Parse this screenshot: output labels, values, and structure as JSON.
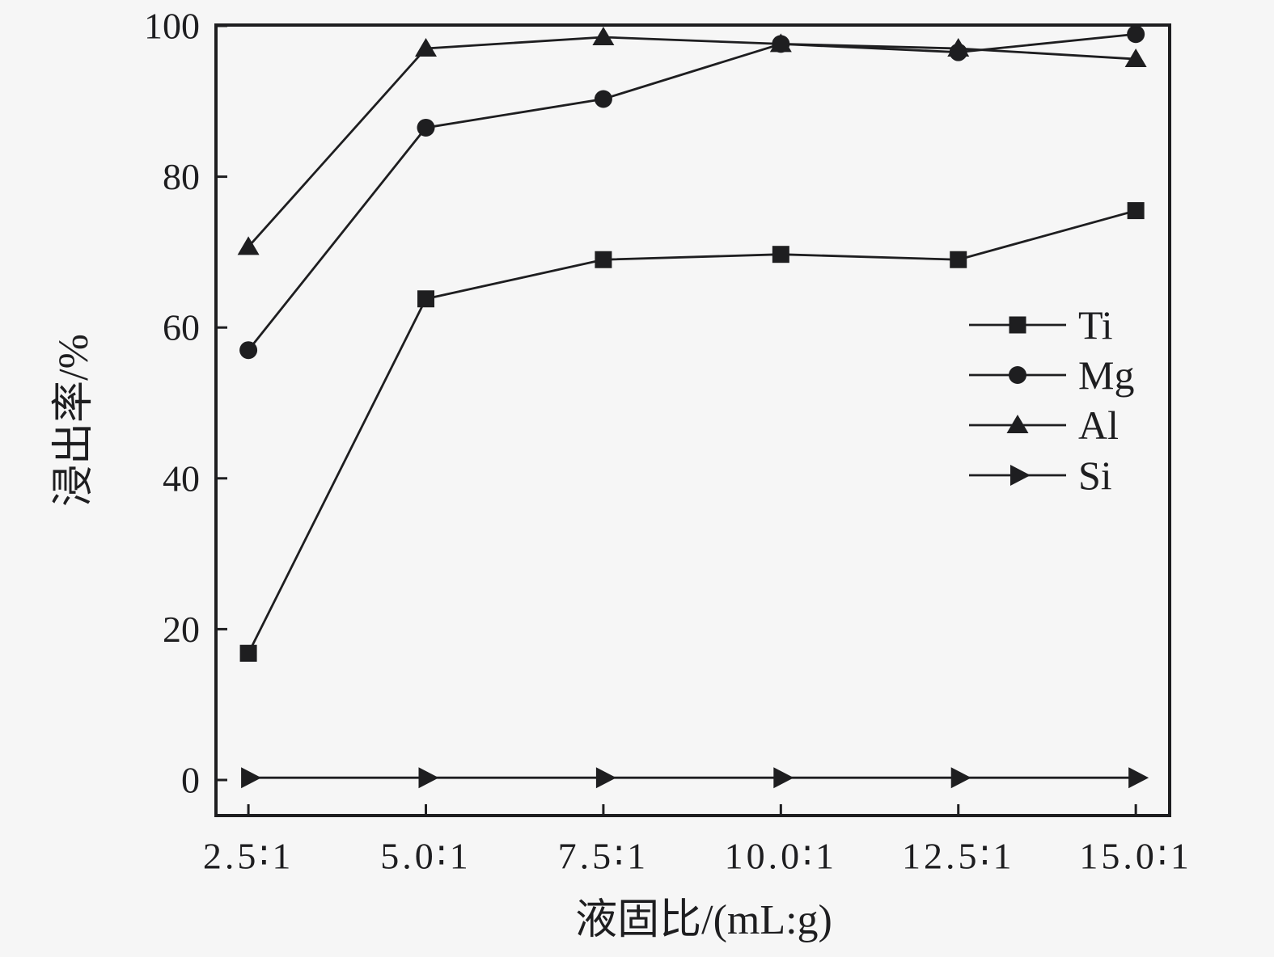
{
  "figure": {
    "background_color": "#f6f6f6",
    "foreground_color": "#1e1e20"
  },
  "chart_data": {
    "type": "line",
    "title": "",
    "xlabel": "液固比/(mL:g)",
    "ylabel": "浸出率/%",
    "categories": [
      "2.5∶1",
      "5.0∶1",
      "7.5∶1",
      "10.0∶1",
      "12.5∶1",
      "15.0∶1"
    ],
    "yticks": [
      0,
      20,
      40,
      60,
      80,
      100
    ],
    "ylim": [
      0,
      100
    ],
    "grid": false,
    "legend_position": "inside-right",
    "series": [
      {
        "name": "Ti",
        "marker": "square",
        "values": [
          16.8,
          63.8,
          69.0,
          69.7,
          69.0,
          75.5
        ]
      },
      {
        "name": "Mg",
        "marker": "circle",
        "values": [
          57.0,
          86.5,
          90.3,
          97.6,
          96.5,
          98.9
        ]
      },
      {
        "name": "Al",
        "marker": "triangle-up",
        "values": [
          70.7,
          97.0,
          98.5,
          97.6,
          97.0,
          95.6
        ]
      },
      {
        "name": "Si",
        "marker": "triangle-right",
        "values": [
          0.3,
          0.3,
          0.3,
          0.3,
          0.3,
          0.3
        ]
      }
    ]
  }
}
